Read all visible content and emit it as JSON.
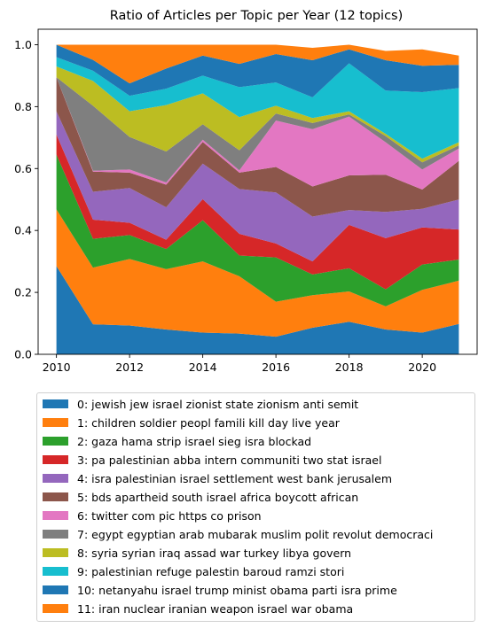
{
  "chart_data": {
    "type": "area",
    "stacked": true,
    "title": "Ratio of Articles per Topic per Year (12 topics)",
    "xlabel": "",
    "ylabel": "",
    "x": [
      2010,
      2011,
      2012,
      2013,
      2014,
      2015,
      2016,
      2017,
      2018,
      2019,
      2020,
      2021
    ],
    "xlim": [
      2009.5,
      2021.5
    ],
    "ylim": [
      0,
      1.05
    ],
    "xticks": [
      "2010",
      "2012",
      "2014",
      "2016",
      "2018",
      "2020"
    ],
    "yticks": [
      "0.0",
      "0.2",
      "0.4",
      "0.6",
      "0.8",
      "1.0"
    ],
    "grid": false,
    "legend_position": "below",
    "series": [
      {
        "name": "0: jewish jew israel zionist state zionism anti semit",
        "color": "#1f77b4",
        "values": [
          0.285,
          0.097,
          0.093,
          0.08,
          0.07,
          0.067,
          0.057,
          0.086,
          0.105,
          0.08,
          0.07,
          0.098
        ]
      },
      {
        "name": "1: children soldier peopl famili kill day live year",
        "color": "#ff7f0e",
        "values": [
          0.183,
          0.183,
          0.215,
          0.195,
          0.23,
          0.185,
          0.113,
          0.105,
          0.098,
          0.075,
          0.138,
          0.14
        ]
      },
      {
        "name": "2: gaza hama strip israel sieg isra blockad",
        "color": "#2ca02c",
        "values": [
          0.177,
          0.093,
          0.077,
          0.065,
          0.133,
          0.067,
          0.143,
          0.067,
          0.075,
          0.055,
          0.082,
          0.068
        ]
      },
      {
        "name": "3: pa palestinian abba intern communiti two stat israel",
        "color": "#d62728",
        "values": [
          0.065,
          0.062,
          0.04,
          0.03,
          0.068,
          0.07,
          0.045,
          0.042,
          0.14,
          0.165,
          0.12,
          0.097
        ]
      },
      {
        "name": "4: isra palestinian israel settlement west bank jerusalem",
        "color": "#9467bd",
        "values": [
          0.075,
          0.09,
          0.112,
          0.105,
          0.115,
          0.145,
          0.165,
          0.145,
          0.048,
          0.085,
          0.06,
          0.097
        ]
      },
      {
        "name": "5: bds apartheid south israel africa boycott african",
        "color": "#8c564b",
        "values": [
          0.11,
          0.065,
          0.05,
          0.073,
          0.07,
          0.053,
          0.082,
          0.097,
          0.112,
          0.12,
          0.062,
          0.125
        ]
      },
      {
        "name": "6: twitter com pic https co prison",
        "color": "#e377c2",
        "values": [
          0.0,
          0.003,
          0.01,
          0.007,
          0.007,
          0.007,
          0.15,
          0.185,
          0.19,
          0.105,
          0.065,
          0.04
        ]
      },
      {
        "name": "7: egypt egyptian arab mubarak muslim polit revolut democraci",
        "color": "#7f7f7f",
        "values": [
          0.0,
          0.21,
          0.105,
          0.1,
          0.05,
          0.065,
          0.023,
          0.02,
          0.007,
          0.02,
          0.023,
          0.01
        ]
      },
      {
        "name": "8: syria syrian iraq assad war turkey libya govern",
        "color": "#bcbd22",
        "values": [
          0.035,
          0.08,
          0.083,
          0.15,
          0.1,
          0.107,
          0.025,
          0.016,
          0.01,
          0.007,
          0.012,
          0.01
        ]
      },
      {
        "name": "9: palestinian refuge palestin baroud ramzi stori",
        "color": "#17becf",
        "values": [
          0.03,
          0.033,
          0.05,
          0.053,
          0.057,
          0.097,
          0.075,
          0.067,
          0.155,
          0.14,
          0.215,
          0.175
        ]
      },
      {
        "name": "10: netanyahu israel trump minist obama parti isra prime",
        "color": "#1f77b4",
        "values": [
          0.04,
          0.035,
          0.04,
          0.065,
          0.065,
          0.075,
          0.092,
          0.12,
          0.045,
          0.098,
          0.085,
          0.075
        ]
      },
      {
        "name": "11: iran nuclear iranian weapon israel war obama",
        "color": "#ff7f0e",
        "values": [
          0.0,
          0.049,
          0.125,
          0.077,
          0.035,
          0.062,
          0.03,
          0.04,
          0.015,
          0.03,
          0.053,
          0.03
        ]
      }
    ]
  }
}
